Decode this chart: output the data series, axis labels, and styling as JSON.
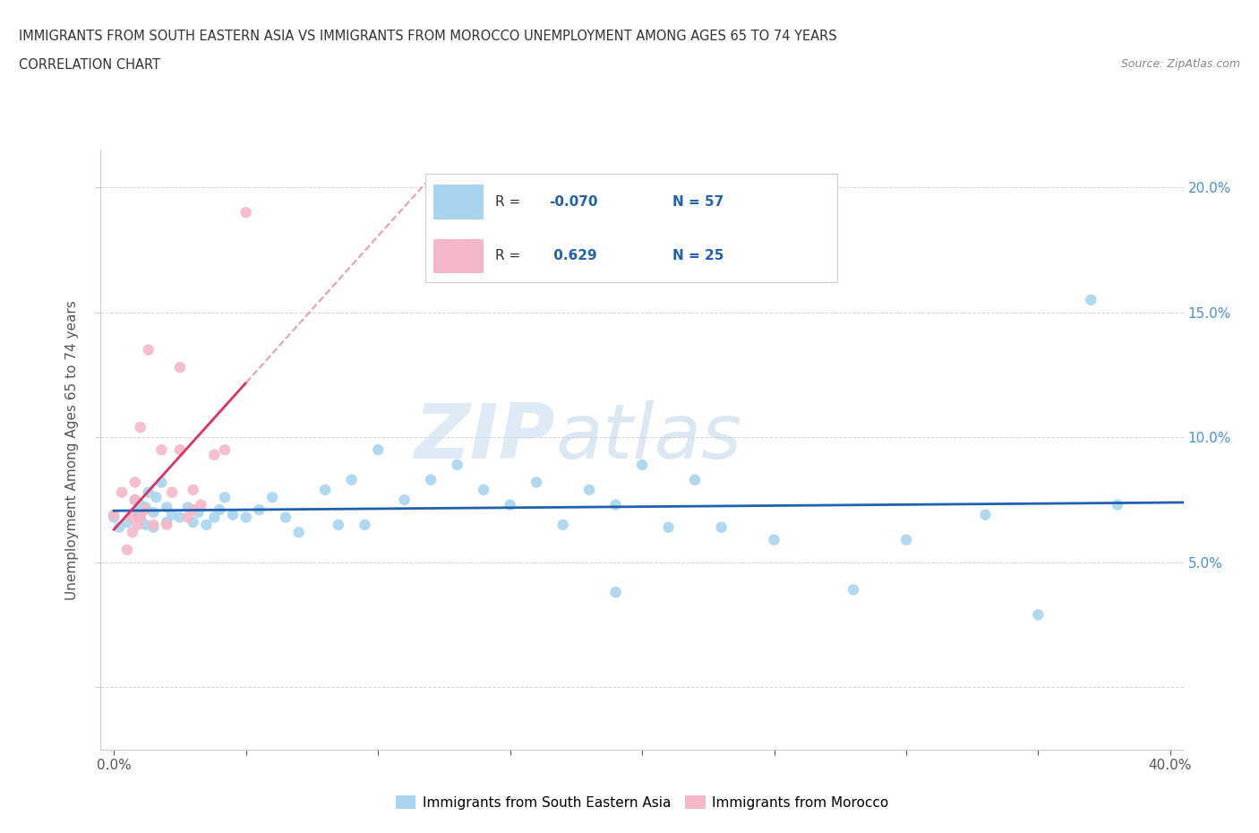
{
  "title_line1": "IMMIGRANTS FROM SOUTH EASTERN ASIA VS IMMIGRANTS FROM MOROCCO UNEMPLOYMENT AMONG AGES 65 TO 74 YEARS",
  "title_line2": "CORRELATION CHART",
  "source_text": "Source: ZipAtlas.com",
  "ylabel": "Unemployment Among Ages 65 to 74 years",
  "xlim": [
    -0.005,
    0.405
  ],
  "ylim": [
    -0.025,
    0.215
  ],
  "x_ticks": [
    0.0,
    0.05,
    0.1,
    0.15,
    0.2,
    0.25,
    0.3,
    0.35,
    0.4
  ],
  "y_ticks": [
    0.0,
    0.05,
    0.1,
    0.15,
    0.2
  ],
  "y_tick_labels_right": [
    "",
    "5.0%",
    "10.0%",
    "15.0%",
    "20.0%"
  ],
  "color_sea": "#a8d4f0",
  "color_morocco": "#f5b8c8",
  "color_sea_line": "#2060b0",
  "color_morocco_line": "#e03060",
  "color_morocco_dashed": "#e8a0b0",
  "watermark_zip": "ZIP",
  "watermark_atlas": "atlas",
  "sea_scatter_x": [
    0.0,
    0.002,
    0.005,
    0.008,
    0.008,
    0.01,
    0.01,
    0.012,
    0.012,
    0.013,
    0.015,
    0.015,
    0.016,
    0.018,
    0.02,
    0.02,
    0.022,
    0.025,
    0.028,
    0.03,
    0.032,
    0.035,
    0.038,
    0.04,
    0.042,
    0.045,
    0.05,
    0.055,
    0.06,
    0.065,
    0.07,
    0.08,
    0.085,
    0.09,
    0.095,
    0.1,
    0.11,
    0.12,
    0.13,
    0.14,
    0.15,
    0.16,
    0.17,
    0.18,
    0.19,
    0.19,
    0.2,
    0.21,
    0.22,
    0.23,
    0.25,
    0.28,
    0.3,
    0.33,
    0.35,
    0.37,
    0.38
  ],
  "sea_scatter_y": [
    0.068,
    0.064,
    0.066,
    0.07,
    0.075,
    0.068,
    0.073,
    0.065,
    0.072,
    0.078,
    0.064,
    0.07,
    0.076,
    0.082,
    0.066,
    0.072,
    0.069,
    0.068,
    0.072,
    0.066,
    0.07,
    0.065,
    0.068,
    0.071,
    0.076,
    0.069,
    0.068,
    0.071,
    0.076,
    0.068,
    0.062,
    0.079,
    0.065,
    0.083,
    0.065,
    0.095,
    0.075,
    0.083,
    0.089,
    0.079,
    0.073,
    0.082,
    0.065,
    0.079,
    0.073,
    0.038,
    0.089,
    0.064,
    0.083,
    0.064,
    0.059,
    0.039,
    0.059,
    0.069,
    0.029,
    0.155,
    0.073
  ],
  "morocco_scatter_x": [
    0.0,
    0.003,
    0.005,
    0.007,
    0.007,
    0.008,
    0.008,
    0.009,
    0.01,
    0.01,
    0.012,
    0.013,
    0.015,
    0.018,
    0.02,
    0.022,
    0.025,
    0.025,
    0.028,
    0.03,
    0.03,
    0.033,
    0.038,
    0.042,
    0.05
  ],
  "morocco_scatter_y": [
    0.069,
    0.078,
    0.055,
    0.062,
    0.068,
    0.075,
    0.082,
    0.065,
    0.068,
    0.104,
    0.071,
    0.135,
    0.065,
    0.095,
    0.065,
    0.078,
    0.095,
    0.128,
    0.068,
    0.071,
    0.079,
    0.073,
    0.093,
    0.095,
    0.19
  ]
}
